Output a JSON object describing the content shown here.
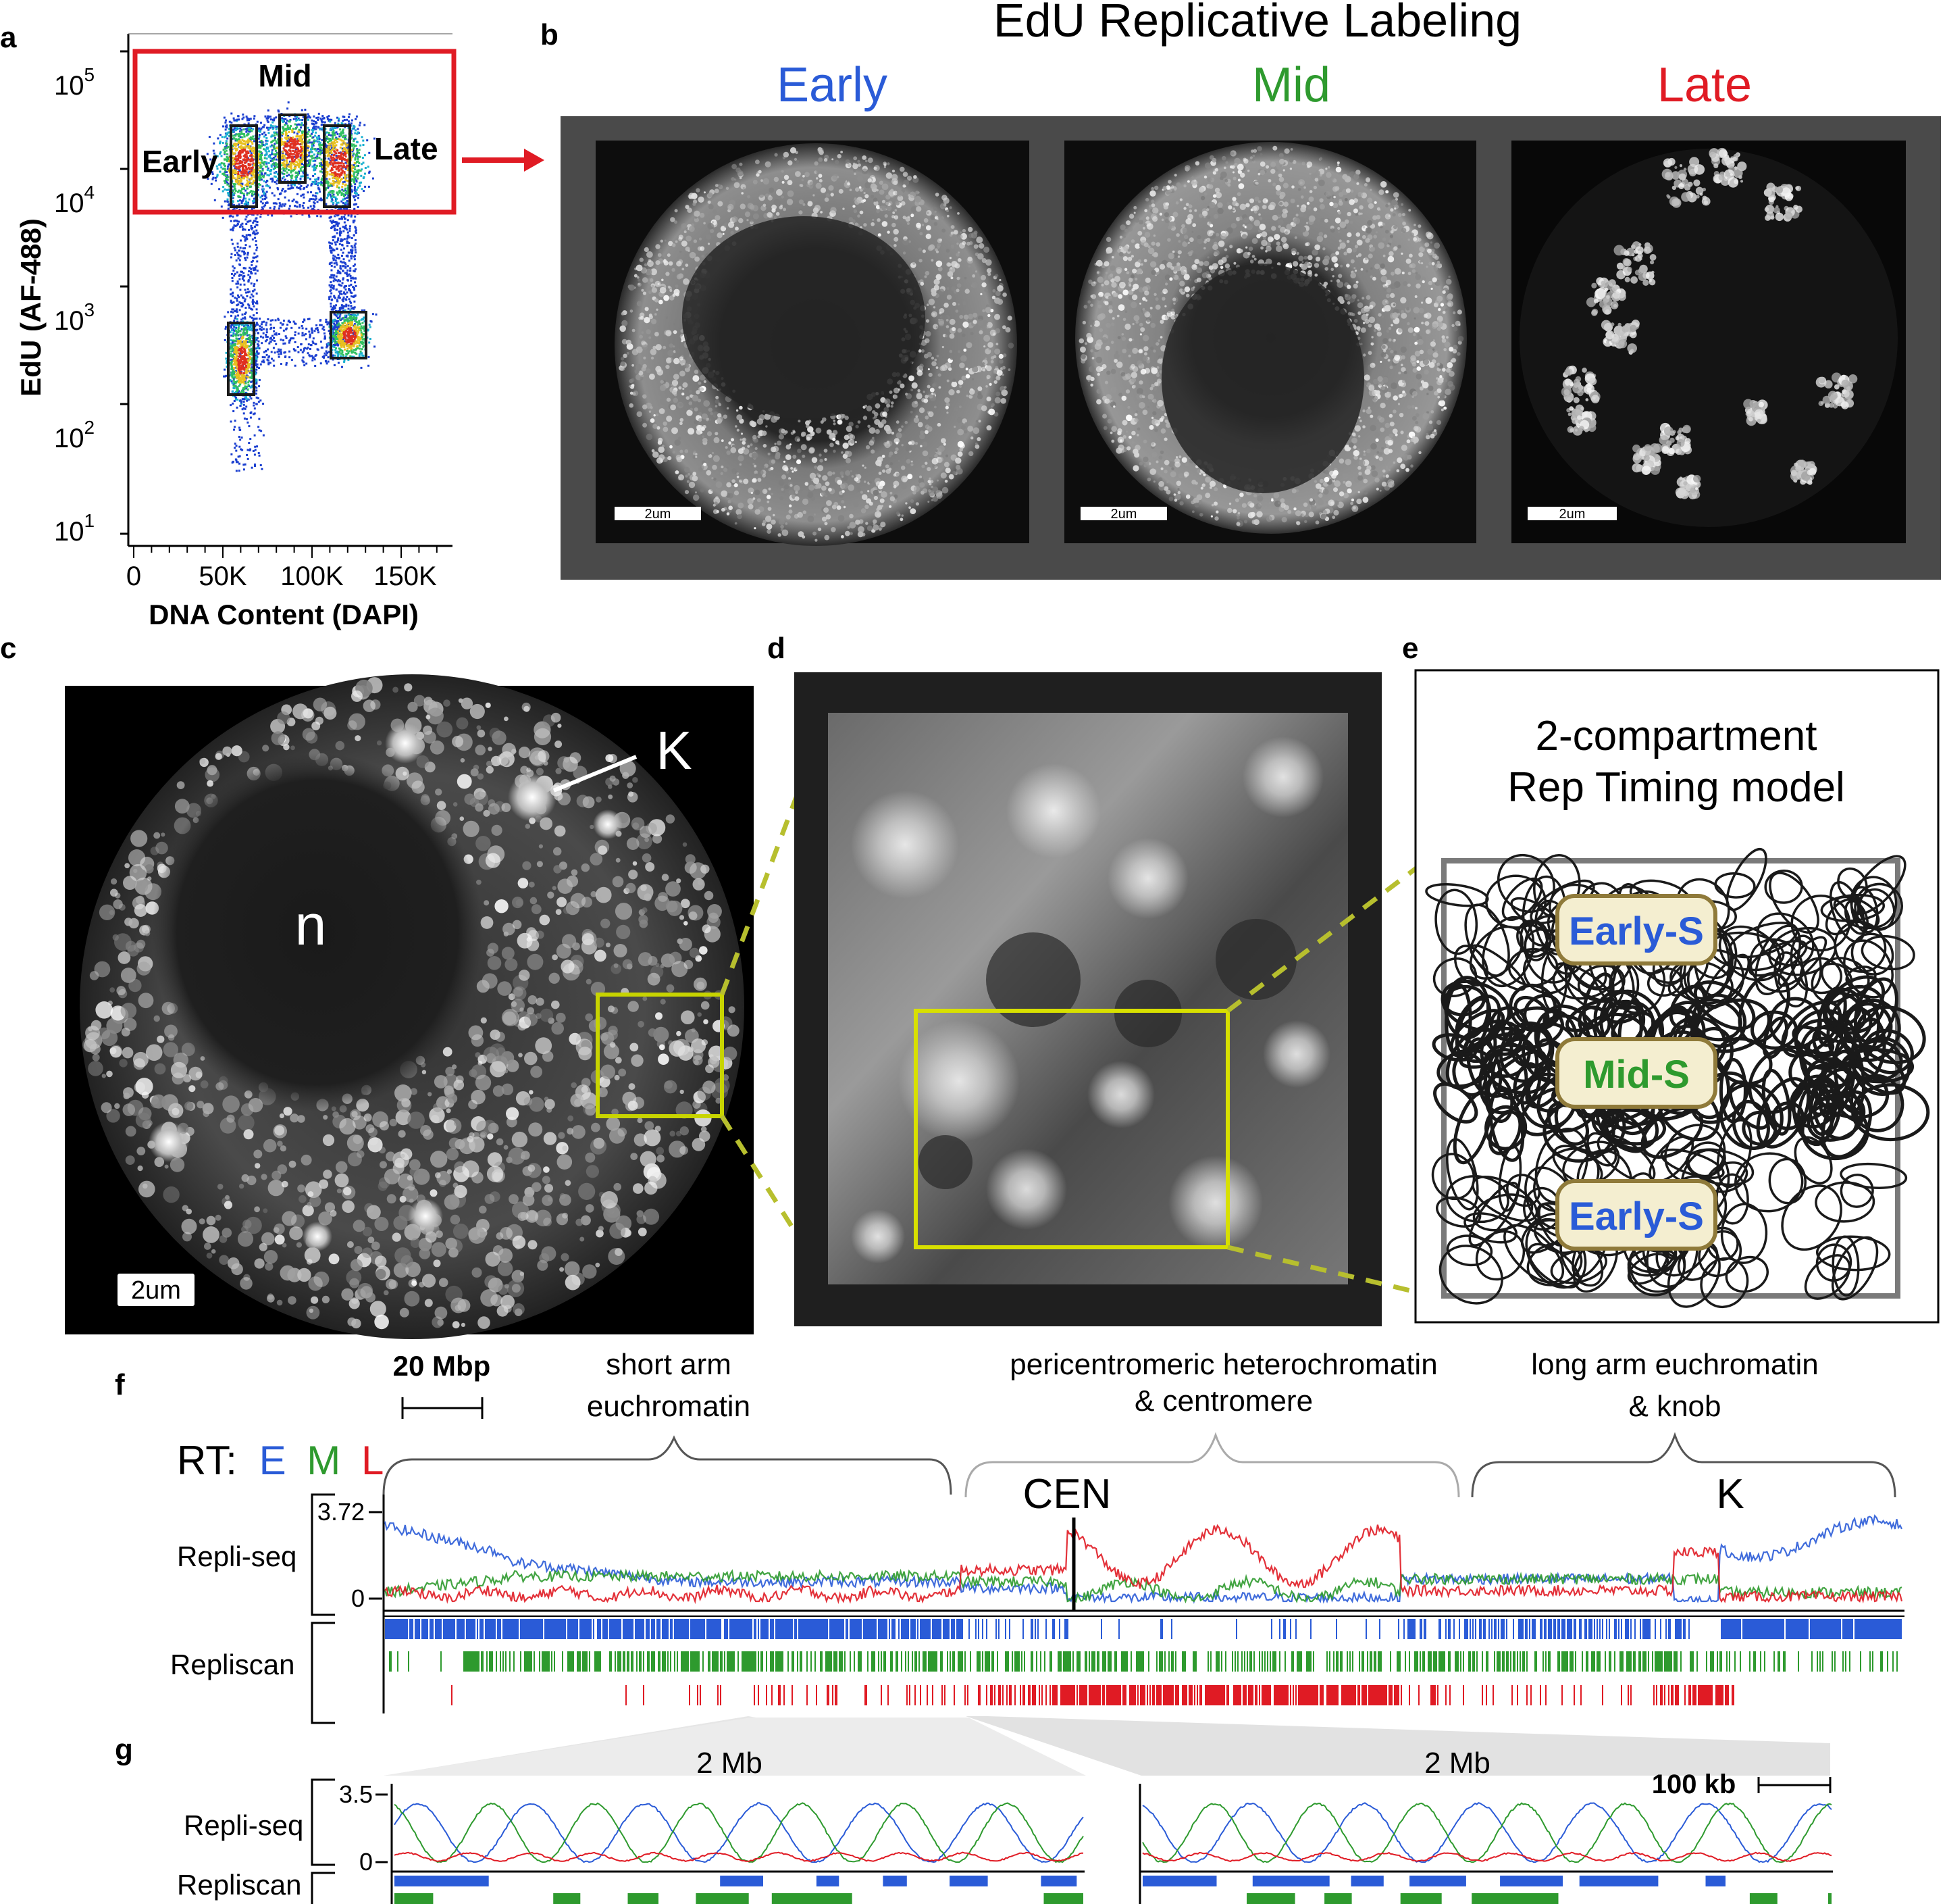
{
  "panel_letters": {
    "a": "a",
    "b": "b",
    "c": "c",
    "d": "d",
    "e": "e",
    "f": "f",
    "g": "g"
  },
  "panel_a": {
    "xlabel": "DNA Content (DAPI)",
    "ylabel": "EdU (AF-488)",
    "xticks": [
      "0",
      "50K",
      "100K",
      "150K"
    ],
    "ytick_base": [
      "10",
      "10",
      "10",
      "10",
      "10"
    ],
    "ytick_exp": [
      "1",
      "2",
      "3",
      "4",
      "5"
    ],
    "gate_labels": {
      "mid": "Mid",
      "early": "Early",
      "late": "Late"
    },
    "colors": {
      "gate_box": "#e01b24",
      "gate": "#1a1a1a"
    }
  },
  "panel_b": {
    "title": "EdU Replicative Labeling",
    "columns": [
      {
        "label": "Early",
        "color": "#2a5bd7"
      },
      {
        "label": "Mid",
        "color": "#2e9a2e"
      },
      {
        "label": "Late",
        "color": "#e01b24"
      }
    ],
    "scalebar": "2um"
  },
  "panel_c": {
    "knob_label": "K",
    "nucleolus_label": "n",
    "scalebar": "2um",
    "box_color": "#c8d400"
  },
  "panel_e": {
    "title_line1": "2-compartment",
    "title_line2": "Rep Timing model",
    "labels": [
      {
        "text": "Early-S",
        "color": "#2a5bd7"
      },
      {
        "text": "Mid-S",
        "color": "#2e9a2e"
      },
      {
        "text": "Early-S",
        "color": "#2a5bd7"
      }
    ]
  },
  "panel_f": {
    "scale_label": "20 Mbp",
    "region1_line1": "short arm",
    "region1_line2": "euchromatin",
    "region2_line1": "pericentromeric heterochromatin",
    "region2_line2": "& centromere",
    "region3_line1": "long arm euchromatin",
    "region3_line2": "& knob",
    "rt_prefix": "RT:",
    "rt_letters": [
      {
        "t": "E",
        "c": "#2a5bd7"
      },
      {
        "t": "M",
        "c": "#2e9a2e"
      },
      {
        "t": "L",
        "c": "#e01b24"
      }
    ],
    "cen_label": "CEN",
    "knob_label": "K",
    "yticks": [
      "3.72",
      "0"
    ],
    "row_labels": {
      "repliseq": "Repli-seq",
      "repliscan": "Repliscan"
    }
  },
  "panel_g": {
    "zoom_label_left": "2 Mb",
    "zoom_label_right": "2 Mb",
    "scale_label": "100 kb",
    "yticks": [
      "3.5",
      "0"
    ],
    "row_labels": {
      "repliseq": "Repli-seq",
      "repliscan": "Repliscan"
    }
  }
}
